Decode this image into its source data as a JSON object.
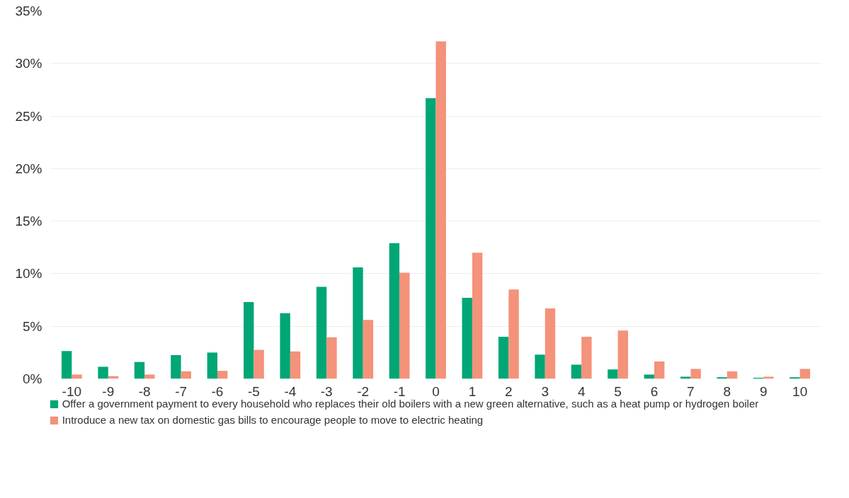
{
  "chart_data": {
    "type": "bar",
    "categories": [
      "-10",
      "-9",
      "-8",
      "-7",
      "-6",
      "-5",
      "-4",
      "-3",
      "-2",
      "-1",
      "0",
      "1",
      "2",
      "3",
      "4",
      "5",
      "6",
      "7",
      "8",
      "9",
      "10"
    ],
    "series": [
      {
        "name": "Offer a government payment to every household who replaces their old boilers with a new green alternative, such as a heat pump or hydrogen boiler",
        "color": "#00a676",
        "values": [
          2.65,
          1.15,
          1.6,
          2.25,
          2.5,
          7.3,
          6.25,
          8.75,
          10.6,
          12.9,
          26.7,
          7.7,
          4.0,
          2.3,
          1.35,
          0.9,
          0.4,
          0.2,
          0.15,
          0.1,
          0.15
        ]
      },
      {
        "name": "Introduce a new tax on domestic gas bills to encourage people to move to electric heating",
        "color": "#f4927a",
        "values": [
          0.4,
          0.25,
          0.4,
          0.7,
          0.75,
          2.75,
          2.6,
          3.95,
          5.6,
          10.1,
          32.1,
          12.0,
          8.5,
          6.7,
          4.0,
          4.6,
          1.65,
          0.95,
          0.7,
          0.2,
          0.95
        ]
      }
    ],
    "ylim": [
      0,
      35
    ],
    "yticks": [
      {
        "value": 0,
        "label": "0%"
      },
      {
        "value": 5,
        "label": "5%"
      },
      {
        "value": 10,
        "label": "10%"
      },
      {
        "value": 15,
        "label": "15%"
      },
      {
        "value": 20,
        "label": "20%"
      },
      {
        "value": 25,
        "label": "25%"
      },
      {
        "value": 30,
        "label": "30%"
      },
      {
        "value": 35,
        "label": "35%"
      }
    ],
    "grid": "y",
    "legend": "bottom"
  }
}
